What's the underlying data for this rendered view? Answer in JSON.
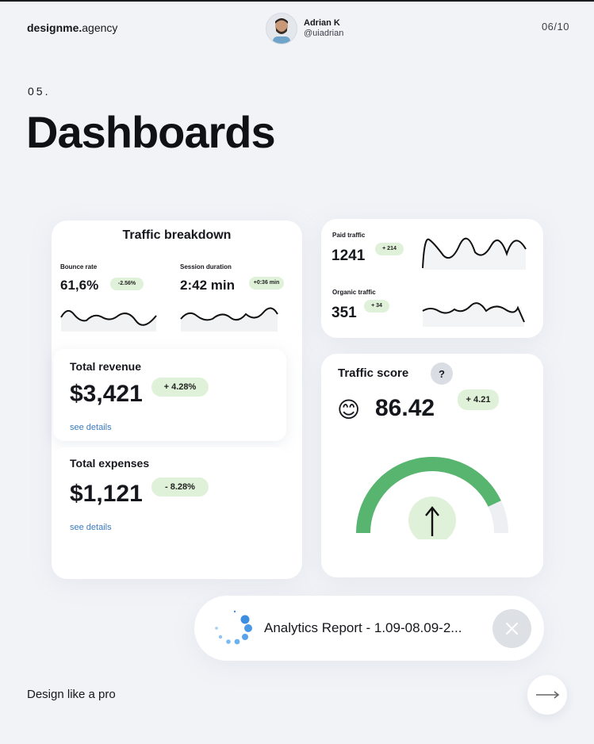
{
  "header": {
    "brand_bold": "designme.",
    "brand_light": "agency",
    "author_name": "Adrian K",
    "author_handle": "@uiadrian",
    "page_counter": "06/10"
  },
  "section_number": "05.",
  "title": "Dashboards",
  "traffic_breakdown": {
    "title": "Traffic breakdown",
    "bounce": {
      "label": "Bounce rate",
      "value": "61,6%",
      "change": "-2.56%"
    },
    "session": {
      "label": "Session duration",
      "value": "2:42 min",
      "change": "+0:36 min"
    }
  },
  "revenue": {
    "label": "Total revenue",
    "value": "$3,421",
    "change": "+ 4.28%",
    "link": "see details"
  },
  "expenses": {
    "label": "Total expenses",
    "value": "$1,121",
    "change": "- 8.28%",
    "link": "see details"
  },
  "paid_traffic": {
    "label": "Paid traffic",
    "value": "1241",
    "change": "+ 214"
  },
  "organic_traffic": {
    "label": "Organic traffic",
    "value": "351",
    "change": "+ 34"
  },
  "traffic_score": {
    "title": "Traffic score",
    "help": "?",
    "emoji": "😊",
    "value": "86.42",
    "change": "+ 4.21",
    "gauge_level": 0.86
  },
  "report": {
    "label": "Analytics Report - 1.09-08.09-2..."
  },
  "footer": {
    "tagline": "Design like a pro"
  },
  "colors": {
    "accent_green": "#58b570",
    "pill_green": "#dff1d8",
    "link_blue": "#3b7ac0"
  }
}
